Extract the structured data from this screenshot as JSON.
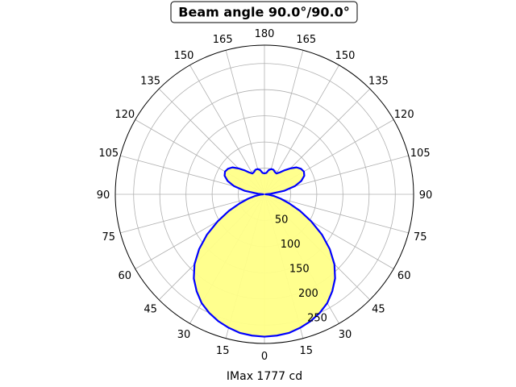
{
  "chart_data": {
    "type": "polar",
    "title": "Beam angle 90.0°/90.0°",
    "xlabel": "IMax 1777 cd",
    "angle_labels": [
      "0",
      "15",
      "30",
      "45",
      "60",
      "75",
      "90",
      "105",
      "120",
      "135",
      "150",
      "165",
      "180"
    ],
    "radial_ticks": [
      50,
      100,
      150,
      200,
      250
    ],
    "rlim": [
      0,
      285
    ],
    "grid": true,
    "fill_color": "#ffff88",
    "line_color": "#0000ff",
    "series": [
      {
        "angles_deg": [
          0,
          5,
          10,
          15,
          20,
          25,
          30,
          35,
          40,
          45,
          50,
          55,
          60,
          65,
          70,
          75,
          80,
          85,
          90,
          95,
          100,
          105,
          110,
          115,
          120,
          125,
          130,
          135,
          140,
          145,
          150,
          155,
          160,
          165,
          170,
          175,
          180
        ],
        "values": [
          272,
          271,
          269,
          264,
          258,
          250,
          240,
          226,
          210,
          189,
          163,
          134,
          103,
          75,
          50,
          32,
          18,
          8,
          2,
          12,
          38,
          60,
          75,
          84,
          87,
          85,
          80,
          70,
          60,
          51,
          46,
          47,
          50,
          50,
          47,
          41,
          40
        ]
      }
    ]
  }
}
